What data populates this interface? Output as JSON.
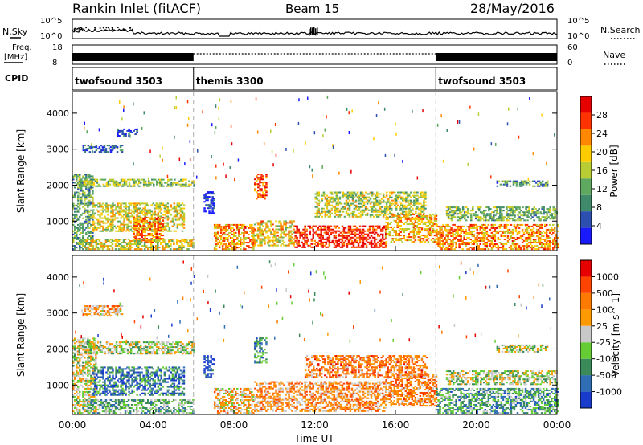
{
  "header": {
    "station": "Rankin Inlet (fitACF)",
    "beam": "Beam 15",
    "date": "28/May/2016"
  },
  "top_panels": {
    "nsky_label": "N.Sky",
    "nsky_ticks": [
      "10^5",
      "10^0"
    ],
    "nsearch_label": "N.Search",
    "nsearch_ticks": [
      "10^5",
      "10^0"
    ],
    "freq_label_line1": "Freq.",
    "freq_label_line2": "[MHz]",
    "freq_ticks": [
      "18",
      "8"
    ],
    "nave_label": "Nave",
    "nave_ticks": [
      "60",
      "0"
    ],
    "cpid_label": "CPID",
    "cpid_segments": [
      {
        "label": "twofsound 3503",
        "start_h": 0,
        "end_h": 6
      },
      {
        "label": "themis 3300",
        "start_h": 6,
        "end_h": 18
      },
      {
        "label": "twofsound 3503",
        "start_h": 18,
        "end_h": 24
      }
    ]
  },
  "chart_data": [
    {
      "type": "heatmap",
      "name": "power",
      "ylabel": "Slant Range [km]",
      "yticks": [
        1000,
        2000,
        3000,
        4000
      ],
      "ylim": [
        180,
        4600
      ],
      "xlim": [
        0,
        24
      ],
      "colorbar_label": "Power [dB]",
      "colorbar_ticks": [
        "28",
        "24",
        "20",
        "16",
        "12",
        "8",
        "4"
      ],
      "colors": [
        "#1a1aff",
        "#2c4fb0",
        "#3f8a6a",
        "#5fa85f",
        "#b8cc33",
        "#ffcc00",
        "#ff8800",
        "#ff3300",
        "#e60000"
      ],
      "regions": [
        {
          "t0": 0.0,
          "t1": 1.0,
          "r0": 200,
          "r1": 2300,
          "level": 0.35
        },
        {
          "t0": 0.5,
          "t1": 2.5,
          "r0": 2900,
          "r1": 3100,
          "level": 0.15
        },
        {
          "t0": 2.2,
          "t1": 3.2,
          "r0": 3350,
          "r1": 3550,
          "level": 0.1
        },
        {
          "t0": 0.3,
          "t1": 6.0,
          "r0": 1950,
          "r1": 2150,
          "level": 0.45
        },
        {
          "t0": 1.0,
          "t1": 5.5,
          "r0": 700,
          "r1": 1500,
          "level": 0.55
        },
        {
          "t0": 3.0,
          "t1": 4.5,
          "r0": 400,
          "r1": 1100,
          "level": 0.75
        },
        {
          "t0": 0.5,
          "t1": 6.0,
          "r0": 200,
          "r1": 500,
          "level": 0.55
        },
        {
          "t0": 6.5,
          "t1": 7.0,
          "r0": 1200,
          "r1": 1800,
          "level": 0.1
        },
        {
          "t0": 7.0,
          "t1": 9.0,
          "r0": 200,
          "r1": 900,
          "level": 0.7
        },
        {
          "t0": 9.0,
          "t1": 9.6,
          "r0": 1600,
          "r1": 2300,
          "level": 0.8
        },
        {
          "t0": 9.0,
          "t1": 11.0,
          "r0": 300,
          "r1": 1000,
          "level": 0.6
        },
        {
          "t0": 11.0,
          "t1": 15.5,
          "r0": 250,
          "r1": 850,
          "level": 0.9
        },
        {
          "t0": 12.0,
          "t1": 17.5,
          "r0": 1100,
          "r1": 1800,
          "level": 0.5
        },
        {
          "t0": 15.5,
          "t1": 18.0,
          "r0": 400,
          "r1": 1200,
          "level": 0.65
        },
        {
          "t0": 18.0,
          "t1": 24.0,
          "r0": 200,
          "r1": 900,
          "level": 0.7
        },
        {
          "t0": 18.5,
          "t1": 24.0,
          "r0": 1000,
          "r1": 1400,
          "level": 0.4
        },
        {
          "t0": 21.0,
          "t1": 23.5,
          "r0": 1950,
          "r1": 2100,
          "level": 0.3
        }
      ]
    },
    {
      "type": "heatmap",
      "name": "velocity",
      "ylabel": "Slant Range [km]",
      "yticks": [
        1000,
        2000,
        3000,
        4000
      ],
      "ylim": [
        180,
        4600
      ],
      "xlim": [
        0,
        24
      ],
      "xlabel": "Time UT",
      "xticks": [
        "00:00",
        "04:00",
        "08:00",
        "12:00",
        "16:00",
        "20:00",
        "00:00"
      ],
      "colorbar_label": "Velocity [m s^-1]",
      "colorbar_ticks": [
        "1000",
        "500",
        "100",
        "25",
        "-25",
        "-100",
        "-500",
        "-1000"
      ],
      "colors": [
        "#1a3ccc",
        "#2f6db5",
        "#3a8a5a",
        "#66cc33",
        "#c8c8c8",
        "#ff9900",
        "#ff7a00",
        "#ff4400",
        "#e60000"
      ],
      "regions": [
        {
          "t0": 0.0,
          "t1": 1.2,
          "r0": 200,
          "r1": 2300,
          "level": 0.5
        },
        {
          "t0": 0.5,
          "t1": 2.5,
          "r0": 2900,
          "r1": 3200,
          "level": 0.62
        },
        {
          "t0": 0.3,
          "t1": 6.0,
          "r0": 1850,
          "r1": 2200,
          "level": 0.45
        },
        {
          "t0": 1.0,
          "t1": 5.5,
          "r0": 700,
          "r1": 1500,
          "level": 0.2
        },
        {
          "t0": 0.5,
          "t1": 6.0,
          "r0": 200,
          "r1": 600,
          "level": 0.35
        },
        {
          "t0": 6.5,
          "t1": 7.0,
          "r0": 1200,
          "r1": 1800,
          "level": 0.05
        },
        {
          "t0": 7.0,
          "t1": 9.0,
          "r0": 200,
          "r1": 900,
          "level": 0.6
        },
        {
          "t0": 9.0,
          "t1": 9.6,
          "r0": 1600,
          "r1": 2300,
          "level": 0.25
        },
        {
          "t0": 9.0,
          "t1": 15.5,
          "r0": 250,
          "r1": 1100,
          "level": 0.66
        },
        {
          "t0": 11.5,
          "t1": 17.5,
          "r0": 1200,
          "r1": 1800,
          "level": 0.72
        },
        {
          "t0": 15.5,
          "t1": 18.0,
          "r0": 400,
          "r1": 1300,
          "level": 0.7
        },
        {
          "t0": 18.0,
          "t1": 24.0,
          "r0": 200,
          "r1": 900,
          "level": 0.3
        },
        {
          "t0": 18.5,
          "t1": 24.0,
          "r0": 1000,
          "r1": 1400,
          "level": 0.45
        },
        {
          "t0": 21.0,
          "t1": 23.5,
          "r0": 1900,
          "r1": 2100,
          "level": 0.45
        }
      ]
    }
  ]
}
